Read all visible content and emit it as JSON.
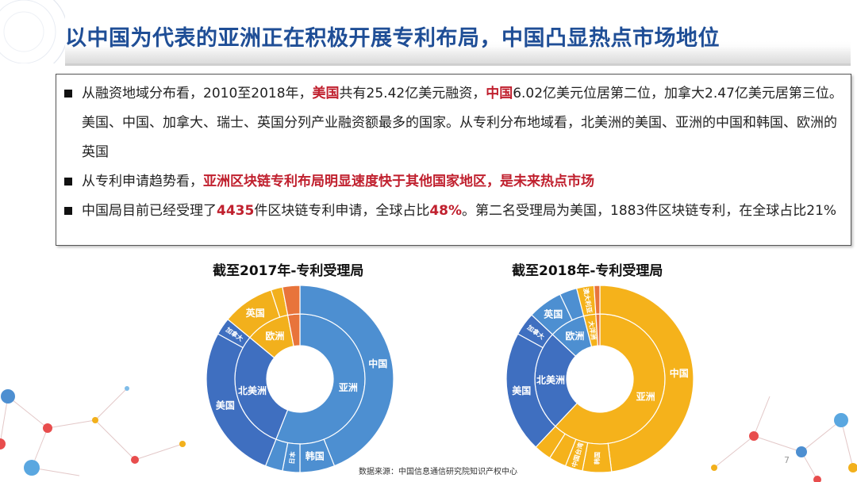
{
  "slide": {
    "title": "以中国为代表的亚洲正在积极开展专利布局，中国凸显热点市场地位",
    "page_number": "7",
    "source": "数据来源：中国信息通信研究院知识产权中心"
  },
  "bullets": [
    {
      "segments": [
        {
          "text": "从融资地域分布看，2010至2018年，",
          "highlight": false
        },
        {
          "text": "美国",
          "highlight": true
        },
        {
          "text": "共有25.42亿美元融资，",
          "highlight": false
        },
        {
          "text": "中国",
          "highlight": true
        },
        {
          "text": "6.02亿美元位居第二位，加拿大2.47亿美元居第三位。美国、中国、加拿大、瑞士、英国分列产业融资额最多的国家。从专利分布地域看，北美洲的美国、亚洲的中国和韩国、欧洲的英国",
          "highlight": false
        }
      ]
    },
    {
      "segments": [
        {
          "text": "从专利申请趋势看，",
          "highlight": false
        },
        {
          "text": "亚洲区块链专利布局明显速度快于其他国家地区，是未来热点市场",
          "highlight": true
        }
      ]
    },
    {
      "segments": [
        {
          "text": "中国局目前已经受理了",
          "highlight": false
        },
        {
          "text": "4435",
          "highlight": true
        },
        {
          "text": "件区块链专利申请，全球占比",
          "highlight": false
        },
        {
          "text": "48%",
          "highlight": true
        },
        {
          "text": "。第二名受理局为美国，1883件区块链专利，在全球占比21%",
          "highlight": false
        }
      ]
    }
  ],
  "colors": {
    "title": "#1f4e96",
    "highlight": "#c0202e",
    "asia": "#4d8fd1",
    "north_america": "#3f6fc0",
    "europe": "#f2b01c",
    "other": "#e8743b",
    "asia_2018": "#f5b21b",
    "north_america_2018": "#3f6fc0",
    "europe_2018": "#4d8fd1"
  },
  "chart_data": [
    {
      "type": "sunburst",
      "title": "截至2017年-专利受理局",
      "inner": [
        {
          "label": "亚洲",
          "value": 56,
          "color": "#4d8fd1"
        },
        {
          "label": "北美洲",
          "value": 30,
          "color": "#3f6fc0"
        },
        {
          "label": "欧洲",
          "value": 11,
          "color": "#f2b01c"
        },
        {
          "label": "",
          "value": 3,
          "color": "#e8743b"
        }
      ],
      "outer": [
        {
          "label": "中国",
          "value": 44,
          "color": "#4d8fd1"
        },
        {
          "label": "韩国",
          "value": 6,
          "color": "#4d8fd1"
        },
        {
          "label": "日本",
          "value": 3,
          "color": "#4d8fd1"
        },
        {
          "label": "",
          "value": 3,
          "color": "#4d8fd1"
        },
        {
          "label": "美国",
          "value": 27,
          "color": "#3f6fc0"
        },
        {
          "label": "加拿大",
          "value": 3,
          "color": "#3f6fc0"
        },
        {
          "label": "英国",
          "value": 9,
          "color": "#f2b01c"
        },
        {
          "label": "",
          "value": 2,
          "color": "#f2b01c"
        },
        {
          "label": "",
          "value": 3,
          "color": "#e8743b"
        }
      ]
    },
    {
      "type": "sunburst",
      "title": "截至2018年-专利受理局",
      "inner": [
        {
          "label": "亚洲",
          "value": 62,
          "color": "#f5b21b"
        },
        {
          "label": "北美洲",
          "value": 25,
          "color": "#3f6fc0"
        },
        {
          "label": "欧洲",
          "value": 9,
          "color": "#4d8fd1"
        },
        {
          "label": "大洋洲",
          "value": 3,
          "color": "#f5b21b"
        },
        {
          "label": "",
          "value": 1,
          "color": "#e8743b"
        }
      ],
      "outer": [
        {
          "label": "中国",
          "value": 48,
          "color": "#f5b21b"
        },
        {
          "label": "韩国",
          "value": 5,
          "color": "#f5b21b"
        },
        {
          "label": "中国台湾",
          "value": 3,
          "color": "#f5b21b"
        },
        {
          "label": "",
          "value": 3,
          "color": "#f5b21b"
        },
        {
          "label": "",
          "value": 3,
          "color": "#f5b21b"
        },
        {
          "label": "美国",
          "value": 21,
          "color": "#3f6fc0"
        },
        {
          "label": "加拿大",
          "value": 4,
          "color": "#3f6fc0"
        },
        {
          "label": "英国",
          "value": 6,
          "color": "#4d8fd1"
        },
        {
          "label": "",
          "value": 3,
          "color": "#4d8fd1"
        },
        {
          "label": "澳大利亚",
          "value": 3,
          "color": "#f5b21b"
        },
        {
          "label": "",
          "value": 1,
          "color": "#e8743b"
        }
      ]
    }
  ]
}
